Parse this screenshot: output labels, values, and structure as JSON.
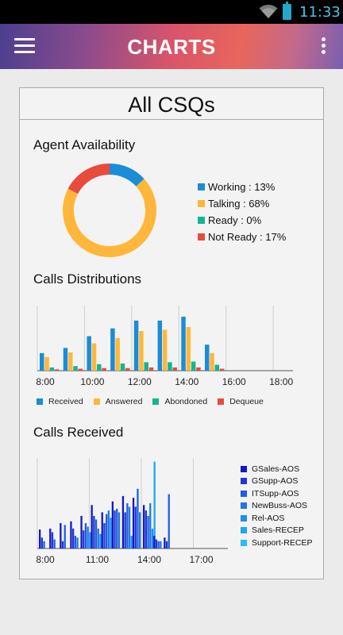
{
  "status_bar": {
    "time": "11:33",
    "wifi_icon": "wifi-icon",
    "battery_icon": "battery-icon",
    "accent": "#4fc3e7"
  },
  "app_bar": {
    "title": "CHARTS",
    "menu_icon": "hamburger-menu-icon",
    "overflow_icon": "overflow-menu-icon"
  },
  "card": {
    "title": "All CSQs"
  },
  "colors": {
    "blue": "#1a8cd8",
    "yellow": "#ffb73b",
    "green": "#13b591",
    "red": "#e84b3c"
  },
  "chart_data": [
    {
      "type": "pie",
      "title": "Agent Availability",
      "donut": true,
      "slices": [
        {
          "label": "Working : 13%",
          "value": 13,
          "color": "#1a8cd8"
        },
        {
          "label": "Talking : 68%",
          "value": 68,
          "color": "#ffb73b"
        },
        {
          "label": "Ready : 0%",
          "value": 0,
          "color": "#13b591"
        },
        {
          "label": "Not Ready : 17%",
          "value": 17,
          "color": "#e84b3c"
        }
      ],
      "legend_placement": "right"
    },
    {
      "type": "bar",
      "title": "Calls Distributions",
      "tick_labels": [
        "8:00",
        "10:00",
        "12:00",
        "14:00",
        "16:00",
        "18:00"
      ],
      "categories": [
        "8:00",
        "9:00",
        "10:00",
        "11:00",
        "12:00",
        "13:00",
        "14:00",
        "15:00",
        "16:00",
        "17:00",
        "18:00"
      ],
      "ylim": [
        0,
        100
      ],
      "grid": true,
      "legend_placement": "bottom",
      "series": [
        {
          "name": "Received",
          "color": "#1a8cd8",
          "values": [
            27,
            35,
            53,
            65,
            77,
            77,
            83,
            40,
            0,
            0,
            0
          ]
        },
        {
          "name": "Answered",
          "color": "#ffb73b",
          "values": [
            21,
            28,
            42,
            50,
            61,
            63,
            67,
            27,
            0,
            0,
            0
          ]
        },
        {
          "name": "Abondoned",
          "color": "#13b591",
          "values": [
            5,
            7,
            10,
            11,
            13,
            13,
            14,
            9,
            0,
            0,
            0
          ]
        },
        {
          "name": "Dequeue",
          "color": "#e84b3c",
          "values": [
            2,
            3,
            4,
            4,
            5,
            5,
            5,
            3,
            0,
            0,
            0
          ]
        }
      ]
    },
    {
      "type": "bar",
      "title": "Calls Received",
      "tick_labels": [
        "8:00",
        "11:00",
        "14:00",
        "17:00"
      ],
      "ylim": [
        0,
        100
      ],
      "grid": true,
      "legend_placement": "right",
      "series_names": [
        "GSales-AOS",
        "GSupp-AOS",
        "ITSupp-AOS",
        "NewBuss-AOS",
        "Rel-AOS",
        "Sales-RECEP",
        "Support-RECEP"
      ],
      "series_colors": [
        "#1616c8",
        "#1e38d6",
        "#1f5fe0",
        "#1e78e8",
        "#1c8ff0",
        "#1fa6f5",
        "#27bdf9"
      ],
      "values": [
        [
          21,
          12,
          8,
          0,
          0,
          0,
          0
        ],
        [
          22,
          18,
          10,
          0,
          0,
          0,
          0
        ],
        [
          28,
          8,
          26,
          0,
          0,
          0,
          0
        ],
        [
          30,
          22,
          14,
          12,
          0,
          0,
          0
        ],
        [
          36,
          20,
          28,
          24,
          18,
          0,
          0
        ],
        [
          48,
          36,
          32,
          22,
          16,
          0,
          0
        ],
        [
          40,
          28,
          38,
          42,
          34,
          0,
          0
        ],
        [
          52,
          42,
          44,
          40,
          0,
          0,
          0
        ],
        [
          58,
          40,
          50,
          46,
          14,
          0,
          0
        ],
        [
          56,
          46,
          66,
          40,
          0,
          0,
          0
        ],
        [
          48,
          42,
          36,
          50,
          22,
          96,
          0
        ],
        [
          14,
          10,
          8,
          8,
          0,
          0,
          0
        ],
        [
          12,
          8,
          60,
          0,
          0,
          0,
          0
        ]
      ]
    }
  ]
}
